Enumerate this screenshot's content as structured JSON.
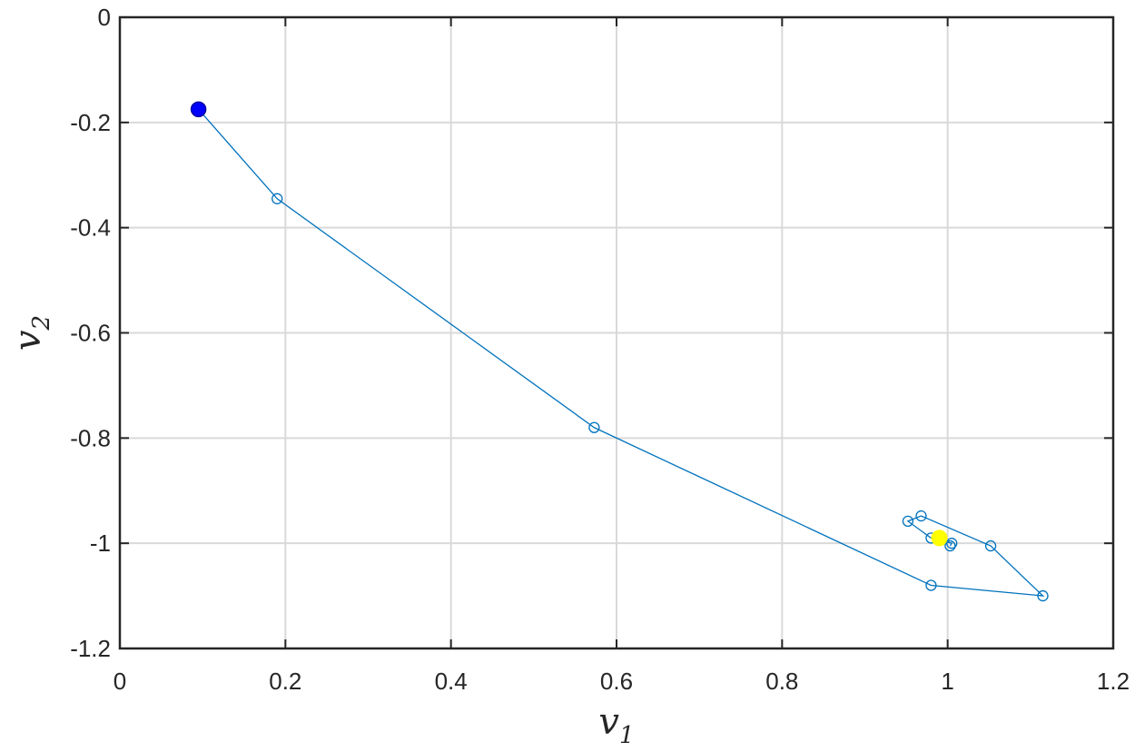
{
  "chart_data": {
    "type": "line",
    "title": "",
    "xlabel": {
      "symbol": "v",
      "subscript": "1"
    },
    "ylabel": {
      "symbol": "v",
      "subscript": "2"
    },
    "xlim": [
      0,
      1.2
    ],
    "ylim": [
      -1.2,
      0
    ],
    "xticks": [
      0,
      0.2,
      0.4,
      0.6,
      0.8,
      1,
      1.2
    ],
    "yticks": [
      0,
      -0.2,
      -0.4,
      -0.6,
      -0.8,
      -1,
      -1.2
    ],
    "xtick_labels": [
      "0",
      "0.2",
      "0.4",
      "0.6",
      "0.8",
      "1",
      "1.2"
    ],
    "ytick_labels": [
      "0",
      "-0.2",
      "-0.4",
      "-0.6",
      "-0.8",
      "-1",
      "-1.2"
    ],
    "grid": true,
    "series": [
      {
        "marker": "open-circle",
        "color": "#0072BD",
        "x": [
          0.095,
          0.19,
          0.573,
          0.98,
          1.115,
          1.052,
          0.968,
          0.952,
          0.98,
          1.005,
          1.003
        ],
        "y": [
          -0.175,
          -0.345,
          -0.78,
          -1.08,
          -1.1,
          -1.005,
          -0.948,
          -0.958,
          -0.99,
          -1.0,
          -1.005
        ]
      }
    ],
    "start_point": {
      "x": 0.095,
      "y": -0.175,
      "color": "#0000FF"
    },
    "end_point": {
      "x": 0.99,
      "y": -0.99,
      "color": "#FFFF00"
    }
  }
}
